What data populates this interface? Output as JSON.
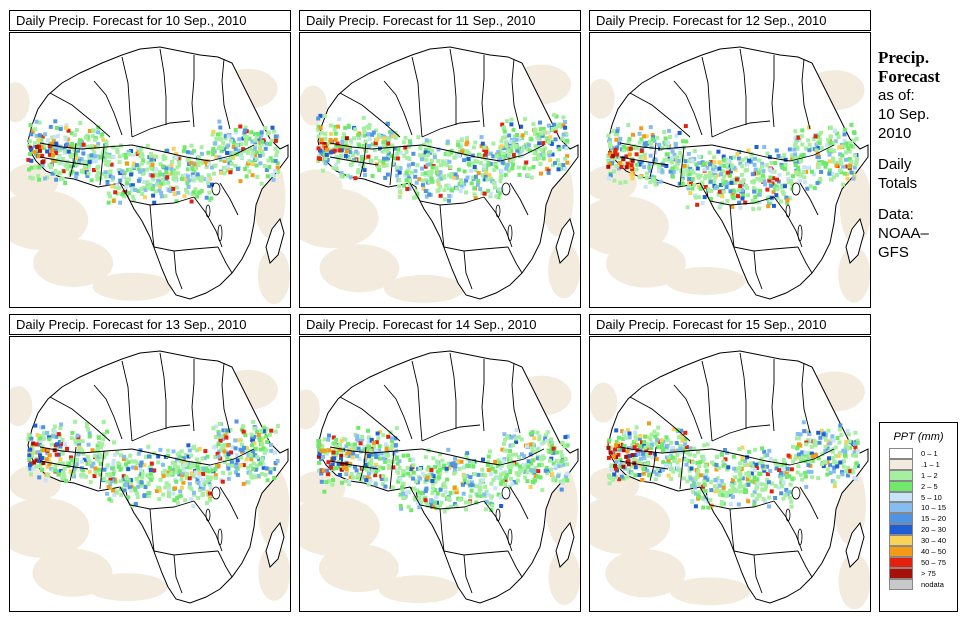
{
  "panels": [
    {
      "title": "Daily Precip. Forecast for  10 Sep., 2010",
      "belt_shift": 0
    },
    {
      "title": "Daily Precip. Forecast for  11 Sep., 2010",
      "belt_shift": -3
    },
    {
      "title": "Daily Precip. Forecast for  12 Sep., 2010",
      "belt_shift": 2
    },
    {
      "title": "Daily Precip. Forecast for  13 Sep., 2010",
      "belt_shift": -2
    },
    {
      "title": "Daily Precip. Forecast for  14 Sep., 2010",
      "belt_shift": 1
    },
    {
      "title": "Daily Precip. Forecast for  15 Sep., 2010",
      "belt_shift": -1
    }
  ],
  "sidebar": {
    "heading_line1": "Precip.",
    "heading_line2": "Forecast",
    "asof_line1": "as of:",
    "asof_line2": "10 Sep.",
    "asof_line3": "2010",
    "daily_line1": "Daily",
    "daily_line2": "Totals",
    "data_line1": "Data:",
    "data_line2": "NOAA–",
    "data_line3": "GFS"
  },
  "legend": {
    "title": "PPT (mm)",
    "items": [
      {
        "label": "0 – 1",
        "color": "#ffffff"
      },
      {
        "label": ".1 – 1",
        "color": "#f3ebdd"
      },
      {
        "label": "1 – 2",
        "color": "#a6efa0"
      },
      {
        "label": "2 – 5",
        "color": "#6ee96a"
      },
      {
        "label": "5 – 10",
        "color": "#c9e3f8"
      },
      {
        "label": "10 – 15",
        "color": "#86bdf0"
      },
      {
        "label": "15 – 20",
        "color": "#4f94e3"
      },
      {
        "label": "20 – 30",
        "color": "#1f5ed4"
      },
      {
        "label": "30 – 40",
        "color": "#f9d25a"
      },
      {
        "label": "40 – 50",
        "color": "#f59a15"
      },
      {
        "label": "50 – 75",
        "color": "#e3220d"
      },
      {
        "label": "> 75",
        "color": "#a61008"
      },
      {
        "label": "nodata",
        "color": "#c9c9c9"
      }
    ]
  }
}
